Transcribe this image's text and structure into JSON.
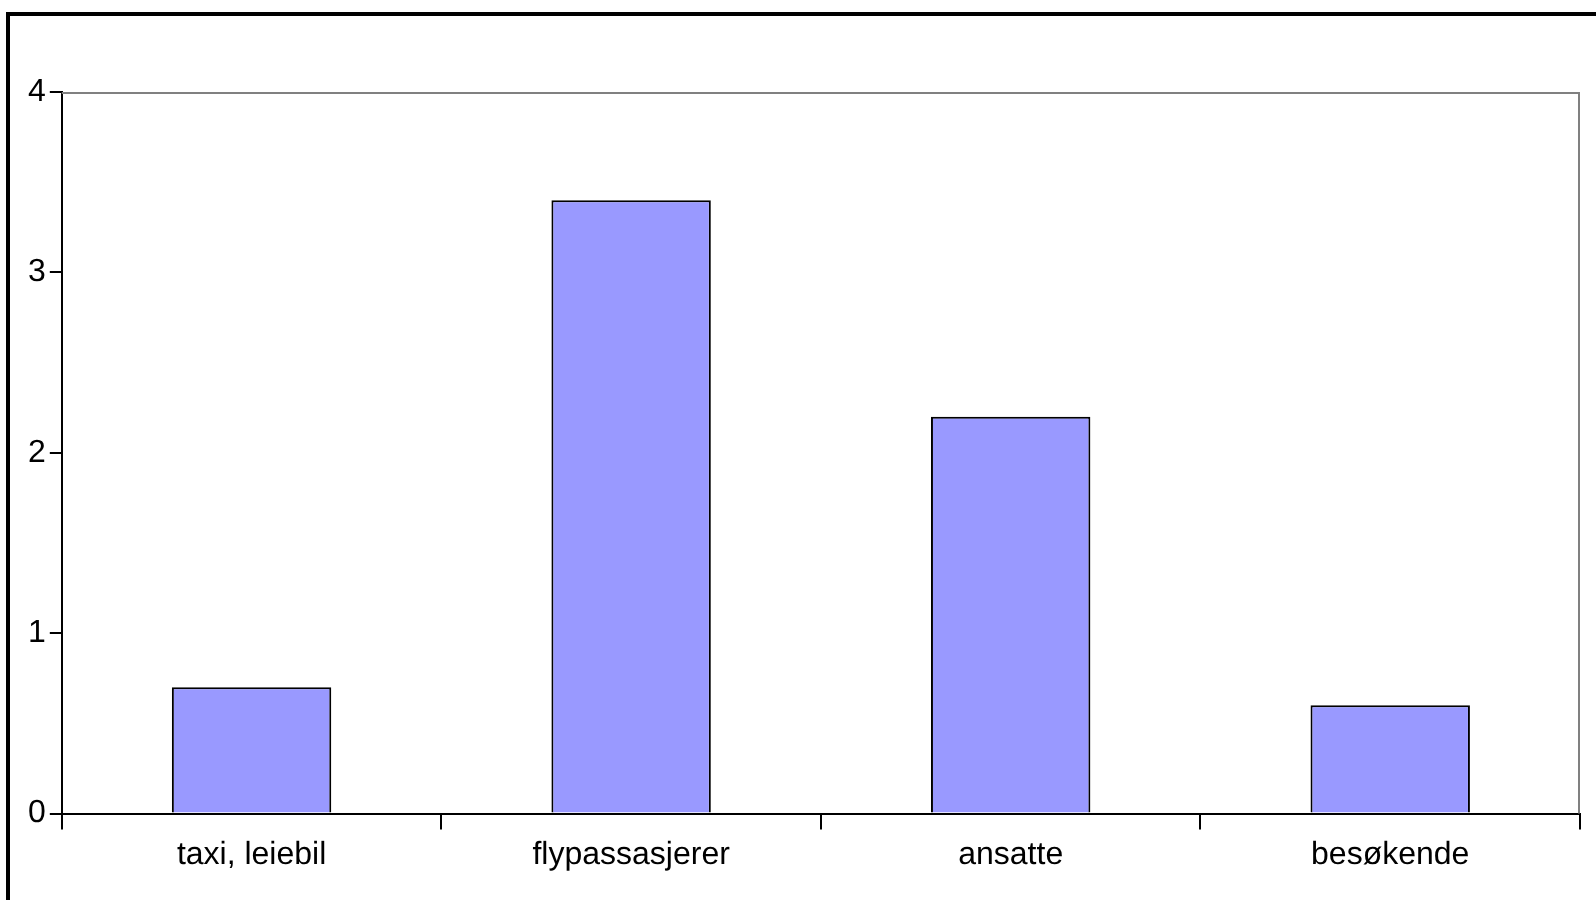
{
  "chart_data": {
    "type": "bar",
    "categories": [
      "taxi, leiebil",
      "flypassasjerer",
      "ansatte",
      "besøkende"
    ],
    "values": [
      0.7,
      3.4,
      2.2,
      0.6
    ],
    "color": "#9999ff",
    "ylim": [
      0,
      4
    ],
    "yticks": [
      0,
      1,
      2,
      3,
      4
    ],
    "legend": false
  }
}
